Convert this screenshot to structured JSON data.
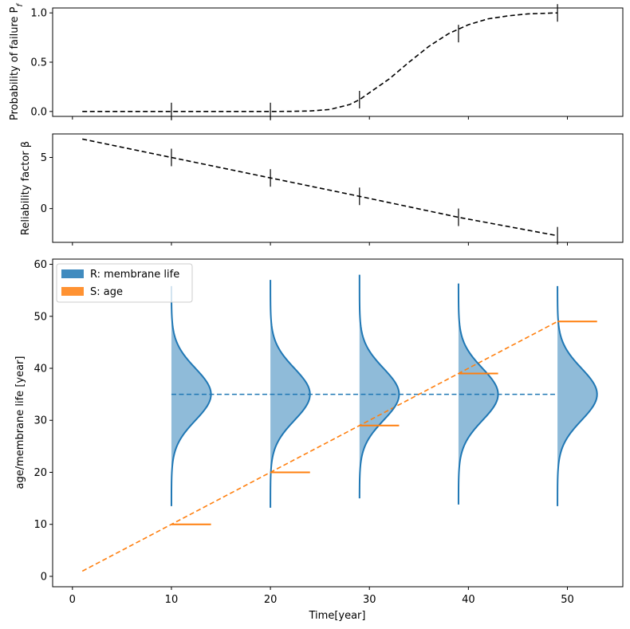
{
  "colors": {
    "blue": "#1f77b4",
    "orange": "#ff7f0e",
    "black": "#000000",
    "fill_blue": "#1f77b4"
  },
  "chart_data": [
    {
      "type": "line",
      "ylabel": "Probability of failure P",
      "ylabel_subscript": "f",
      "xlim": [
        -2.0,
        55.6
      ],
      "ylim": [
        -0.05,
        1.05
      ],
      "yticks": [
        0.0,
        0.5,
        1.0
      ],
      "ytick_labels": [
        "0.0",
        "0.5",
        "1.0"
      ],
      "curve": {
        "x": [
          1,
          5,
          10,
          15,
          20,
          22,
          24,
          26,
          28,
          29,
          30,
          32,
          34,
          35,
          36,
          38,
          40,
          42,
          44,
          46,
          48,
          49
        ],
        "y": [
          0.0,
          0.0,
          0.0,
          0.0,
          0.0,
          0.001,
          0.005,
          0.02,
          0.07,
          0.12,
          0.19,
          0.33,
          0.5,
          0.58,
          0.66,
          0.79,
          0.88,
          0.94,
          0.97,
          0.99,
          0.997,
          1.0
        ]
      },
      "error_marks": [
        {
          "x": 10,
          "y": 0.0
        },
        {
          "x": 20,
          "y": 0.0
        },
        {
          "x": 29,
          "y": 0.12
        },
        {
          "x": 39,
          "y": 0.79
        },
        {
          "x": 49,
          "y": 1.0
        }
      ]
    },
    {
      "type": "line",
      "ylabel": "Reliability factor β",
      "xlim": [
        -2.0,
        55.6
      ],
      "ylim": [
        -3.3,
        7.3
      ],
      "yticks": [
        0,
        5
      ],
      "ytick_labels": [
        "0",
        "5"
      ],
      "curve": {
        "x": [
          1,
          10,
          20,
          29,
          39,
          49
        ],
        "y": [
          6.8,
          5.0,
          3.0,
          1.2,
          -0.85,
          -2.65
        ]
      },
      "error_marks": [
        {
          "x": 10,
          "y": 5.0
        },
        {
          "x": 20,
          "y": 3.0
        },
        {
          "x": 29,
          "y": 1.2
        },
        {
          "x": 39,
          "y": -0.85
        },
        {
          "x": 49,
          "y": -2.65
        }
      ]
    },
    {
      "type": "area",
      "xlabel": "Time[year]",
      "ylabel": "age/membrane life [year]",
      "xlim": [
        -2.0,
        55.6
      ],
      "ylim": [
        -2.0,
        61.0
      ],
      "xticks": [
        0,
        10,
        20,
        30,
        40,
        50
      ],
      "xtick_labels": [
        "0",
        "10",
        "20",
        "30",
        "40",
        "50"
      ],
      "yticks": [
        0,
        10,
        20,
        30,
        40,
        50,
        60
      ],
      "ytick_labels": [
        "0",
        "10",
        "20",
        "30",
        "40",
        "50",
        "60"
      ],
      "legend": [
        {
          "label": "R: membrane life",
          "color": "#1f77b4"
        },
        {
          "label": "S: age",
          "color": "#ff7f0e"
        }
      ],
      "legend_position": "top-left",
      "resistance_mean": 35,
      "resistance_std": 5,
      "resistance_mean_line": {
        "x": [
          10,
          49
        ],
        "y": [
          35,
          35
        ]
      },
      "age_line": {
        "x": [
          1,
          49
        ],
        "y": [
          1,
          49
        ]
      },
      "distributions": [
        {
          "x": 10,
          "ymin": 13.5,
          "ymax": 55.8,
          "peak_width": 4.0
        },
        {
          "x": 20,
          "ymin": 13.2,
          "ymax": 57.0,
          "peak_width": 4.0
        },
        {
          "x": 29,
          "ymin": 15.0,
          "ymax": 58.0,
          "peak_width": 4.0
        },
        {
          "x": 39,
          "ymin": 13.8,
          "ymax": 56.3,
          "peak_width": 4.0
        },
        {
          "x": 49,
          "ymin": 13.5,
          "ymax": 55.8,
          "peak_width": 4.0
        }
      ],
      "age_marks": [
        {
          "x": 10,
          "y": 10,
          "width": 4
        },
        {
          "x": 20,
          "y": 20,
          "width": 4
        },
        {
          "x": 29,
          "y": 29,
          "width": 4
        },
        {
          "x": 39,
          "y": 39,
          "width": 4
        },
        {
          "x": 49,
          "y": 49,
          "width": 4
        }
      ]
    }
  ]
}
